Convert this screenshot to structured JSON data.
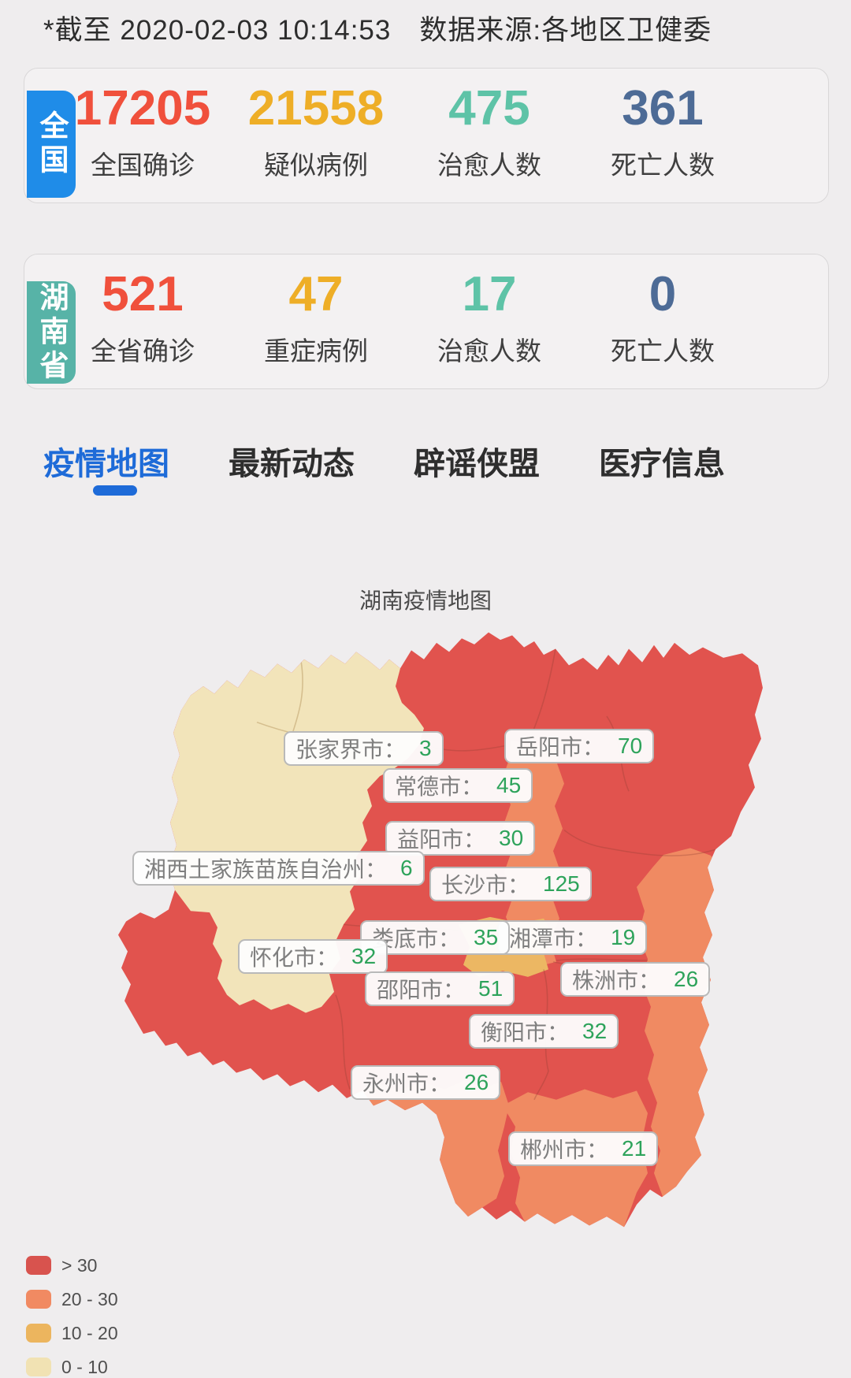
{
  "header": {
    "text": "*截至 2020-02-03 10:14:53　数据来源:各地区卫健委"
  },
  "theme": {
    "page_bg": "#efedee",
    "active_tab_color": "#1e6bd8",
    "map_red": "#e1534e",
    "map_salmon": "#f08a62",
    "map_amber": "#ecb763",
    "map_cream": "#f2e4ba",
    "label_value_green": "#2ea35b"
  },
  "cards": [
    {
      "tab": "全国",
      "tab_color": "#1f8ce8",
      "stats": [
        {
          "value": "17205",
          "label": "全国确诊",
          "color": "#f0503c"
        },
        {
          "value": "21558",
          "label": "疑似病例",
          "color": "#eeae27"
        },
        {
          "value": "475",
          "label": "治愈人数",
          "color": "#5ec3a7"
        },
        {
          "value": "361",
          "label": "死亡人数",
          "color": "#4d6b96"
        }
      ]
    },
    {
      "tab": "湖南省",
      "tab_color": "#57b3a7",
      "stats": [
        {
          "value": "521",
          "label": "全省确诊",
          "color": "#f0503c"
        },
        {
          "value": "47",
          "label": "重症病例",
          "color": "#eeae27"
        },
        {
          "value": "17",
          "label": "治愈人数",
          "color": "#5ec3a7"
        },
        {
          "value": "0",
          "label": "死亡人数",
          "color": "#4d6b96"
        }
      ]
    }
  ],
  "tabs": [
    {
      "label": "疫情地图",
      "active": true
    },
    {
      "label": "最新动态",
      "active": false
    },
    {
      "label": "辟谣侠盟",
      "active": false
    },
    {
      "label": "医疗信息",
      "active": false
    }
  ],
  "map": {
    "title": "湖南疫情地图",
    "labels": [
      {
        "name": "张家界市",
        "value": "3"
      },
      {
        "name": "岳阳市",
        "value": "70"
      },
      {
        "name": "常德市",
        "value": "45"
      },
      {
        "name": "益阳市",
        "value": "30"
      },
      {
        "name": "湘西土家族苗族自治州",
        "value": "6"
      },
      {
        "name": "长沙市",
        "value": "125"
      },
      {
        "name": "湘潭市",
        "value": "19"
      },
      {
        "name": "娄底市",
        "value": "35"
      },
      {
        "name": "怀化市",
        "value": "32"
      },
      {
        "name": "株洲市",
        "value": "26"
      },
      {
        "name": "邵阳市",
        "value": "51"
      },
      {
        "name": "衡阳市",
        "value": "32"
      },
      {
        "name": "永州市",
        "value": "26"
      },
      {
        "name": "郴州市",
        "value": "21"
      }
    ],
    "legend": [
      {
        "label": "> 30",
        "color": "#d8534e"
      },
      {
        "label": "20 - 30",
        "color": "#f18a62"
      },
      {
        "label": "10 - 20",
        "color": "#ecb55e"
      },
      {
        "label": "0 - 10",
        "color": "#f1e2b3"
      }
    ]
  }
}
